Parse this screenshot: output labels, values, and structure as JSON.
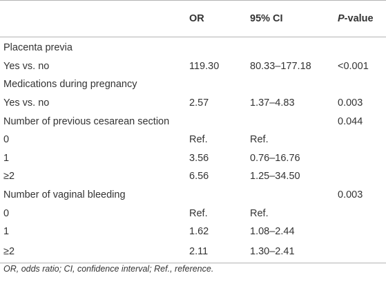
{
  "table": {
    "headers": {
      "c1": "",
      "or": "OR",
      "ci": "95% CI",
      "p_italic": "P",
      "p_rest": "-value"
    },
    "rows": [
      {
        "label": "Placenta previa",
        "or": "",
        "ci": "",
        "p": ""
      },
      {
        "label": "Yes vs. no",
        "or": "119.30",
        "ci": "80.33–177.18",
        "p": "<0.001"
      },
      {
        "label": "Medications during pregnancy",
        "or": "",
        "ci": "",
        "p": ""
      },
      {
        "label": "Yes vs. no",
        "or": "2.57",
        "ci": "1.37–4.83",
        "p": "0.003"
      },
      {
        "label": "Number of previous cesarean section",
        "or": "",
        "ci": "",
        "p": "0.044"
      },
      {
        "label": "0",
        "or": "Ref.",
        "ci": "Ref.",
        "p": ""
      },
      {
        "label": "1",
        "or": "3.56",
        "ci": "0.76–16.76",
        "p": ""
      },
      {
        "label": "≥2",
        "or": "6.56",
        "ci": "1.25–34.50",
        "p": ""
      },
      {
        "label": "Number of vaginal bleeding",
        "or": "",
        "ci": "",
        "p": "0.003"
      },
      {
        "label": "0",
        "or": "Ref.",
        "ci": "Ref.",
        "p": ""
      },
      {
        "label": "1",
        "or": "1.62",
        "ci": "1.08–2.44",
        "p": ""
      },
      {
        "label": "≥2",
        "or": "2.11",
        "ci": "1.30–2.41",
        "p": ""
      }
    ]
  },
  "footnote": "OR, odds ratio; CI, confidence interval; Ref., reference."
}
